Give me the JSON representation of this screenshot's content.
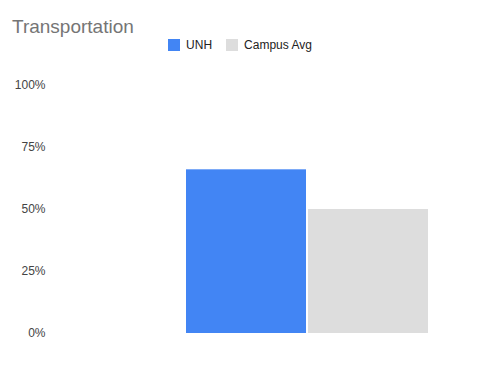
{
  "chart_data": {
    "type": "bar",
    "title": "Transportation",
    "categories": [
      null
    ],
    "series": [
      {
        "name": "UNH",
        "color": "#4285f4",
        "values": [
          66
        ]
      },
      {
        "name": "Campus Avg",
        "color": "#dddddd",
        "values": [
          50
        ]
      }
    ],
    "ylim": [
      0,
      100
    ],
    "yticks": [
      {
        "value": 0,
        "label": "0%"
      },
      {
        "value": 25,
        "label": "25%"
      },
      {
        "value": 50,
        "label": "50%"
      },
      {
        "value": 75,
        "label": "75%"
      },
      {
        "value": 100,
        "label": "100%"
      }
    ],
    "grid": false,
    "legend": "top"
  }
}
